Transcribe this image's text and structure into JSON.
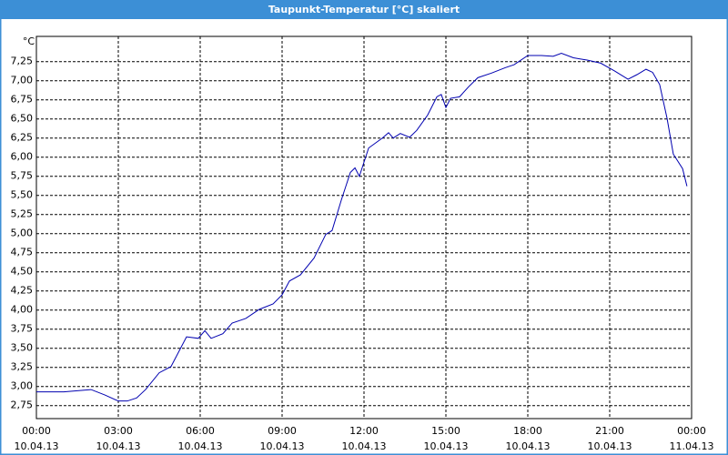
{
  "chart_data": {
    "type": "line",
    "title": "Taupunkt-Temperatur [°C] skaliert",
    "unit": "°C",
    "x": [
      0,
      1,
      2,
      2.5,
      3,
      3.33,
      3.67,
      4,
      4.5,
      4.93,
      5.5,
      5.93,
      6.17,
      6.4,
      6.83,
      7.17,
      7.67,
      8.17,
      8.67,
      9,
      9.27,
      9.67,
      10.17,
      10.6,
      10.83,
      11.17,
      11.5,
      11.67,
      11.83,
      12.17,
      12.67,
      12.9,
      13.07,
      13.33,
      13.67,
      13.93,
      14.33,
      14.67,
      14.83,
      15,
      15.17,
      15.5,
      15.83,
      16.17,
      16.67,
      17.17,
      17.5,
      18,
      18.5,
      18.93,
      19.23,
      19.67,
      20.17,
      20.67,
      21.17,
      21.67,
      22,
      22.33,
      22.57,
      22.83,
      23.1,
      23.33,
      23.67,
      23.83
    ],
    "series": [
      {
        "name": "Taupunkt",
        "color": "#0000b0",
        "values": [
          2.93,
          2.93,
          2.96,
          2.89,
          2.81,
          2.81,
          2.85,
          2.96,
          3.18,
          3.26,
          3.65,
          3.63,
          3.73,
          3.63,
          3.69,
          3.83,
          3.89,
          4.01,
          4.08,
          4.2,
          4.38,
          4.46,
          4.68,
          4.99,
          5.04,
          5.44,
          5.8,
          5.86,
          5.75,
          6.12,
          6.25,
          6.32,
          6.25,
          6.31,
          6.26,
          6.35,
          6.55,
          6.79,
          6.82,
          6.65,
          6.77,
          6.79,
          6.92,
          7.04,
          7.1,
          7.17,
          7.21,
          7.33,
          7.33,
          7.32,
          7.36,
          7.3,
          7.27,
          7.23,
          7.13,
          7.02,
          7.08,
          7.15,
          7.11,
          6.95,
          6.51,
          6.04,
          5.85,
          5.62
        ]
      }
    ],
    "xlim": [
      0,
      24
    ],
    "xticks": [
      {
        "value": 0,
        "label": "00:00\n10.04.13"
      },
      {
        "value": 3,
        "label": "03:00\n10.04.13"
      },
      {
        "value": 6,
        "label": "06:00\n10.04.13"
      },
      {
        "value": 9,
        "label": "09:00\n10.04.13"
      },
      {
        "value": 12,
        "label": "12:00\n10.04.13"
      },
      {
        "value": 15,
        "label": "15:00\n10.04.13"
      },
      {
        "value": 18,
        "label": "18:00\n10.04.13"
      },
      {
        "value": 21,
        "label": "21:00\n10.04.13"
      },
      {
        "value": 24,
        "label": "00:00\n11.04.13"
      }
    ],
    "ylim": [
      2.58,
      7.58
    ],
    "yticks": [
      {
        "value": 2.75,
        "label": "2,75"
      },
      {
        "value": 3,
        "label": "3,00"
      },
      {
        "value": 3.25,
        "label": "3,25"
      },
      {
        "value": 3.5,
        "label": "3,50"
      },
      {
        "value": 3.75,
        "label": "3,75"
      },
      {
        "value": 4,
        "label": "4,00"
      },
      {
        "value": 4.25,
        "label": "4,25"
      },
      {
        "value": 4.5,
        "label": "4,50"
      },
      {
        "value": 4.75,
        "label": "4,75"
      },
      {
        "value": 5,
        "label": "5,00"
      },
      {
        "value": 5.25,
        "label": "5,25"
      },
      {
        "value": 5.5,
        "label": "5,50"
      },
      {
        "value": 5.75,
        "label": "5,75"
      },
      {
        "value": 6,
        "label": "6,00"
      },
      {
        "value": 6.25,
        "label": "6,25"
      },
      {
        "value": 6.5,
        "label": "6,50"
      },
      {
        "value": 6.75,
        "label": "6,75"
      },
      {
        "value": 7,
        "label": "7,00"
      },
      {
        "value": 7.25,
        "label": "7,25"
      }
    ],
    "grid": true
  }
}
